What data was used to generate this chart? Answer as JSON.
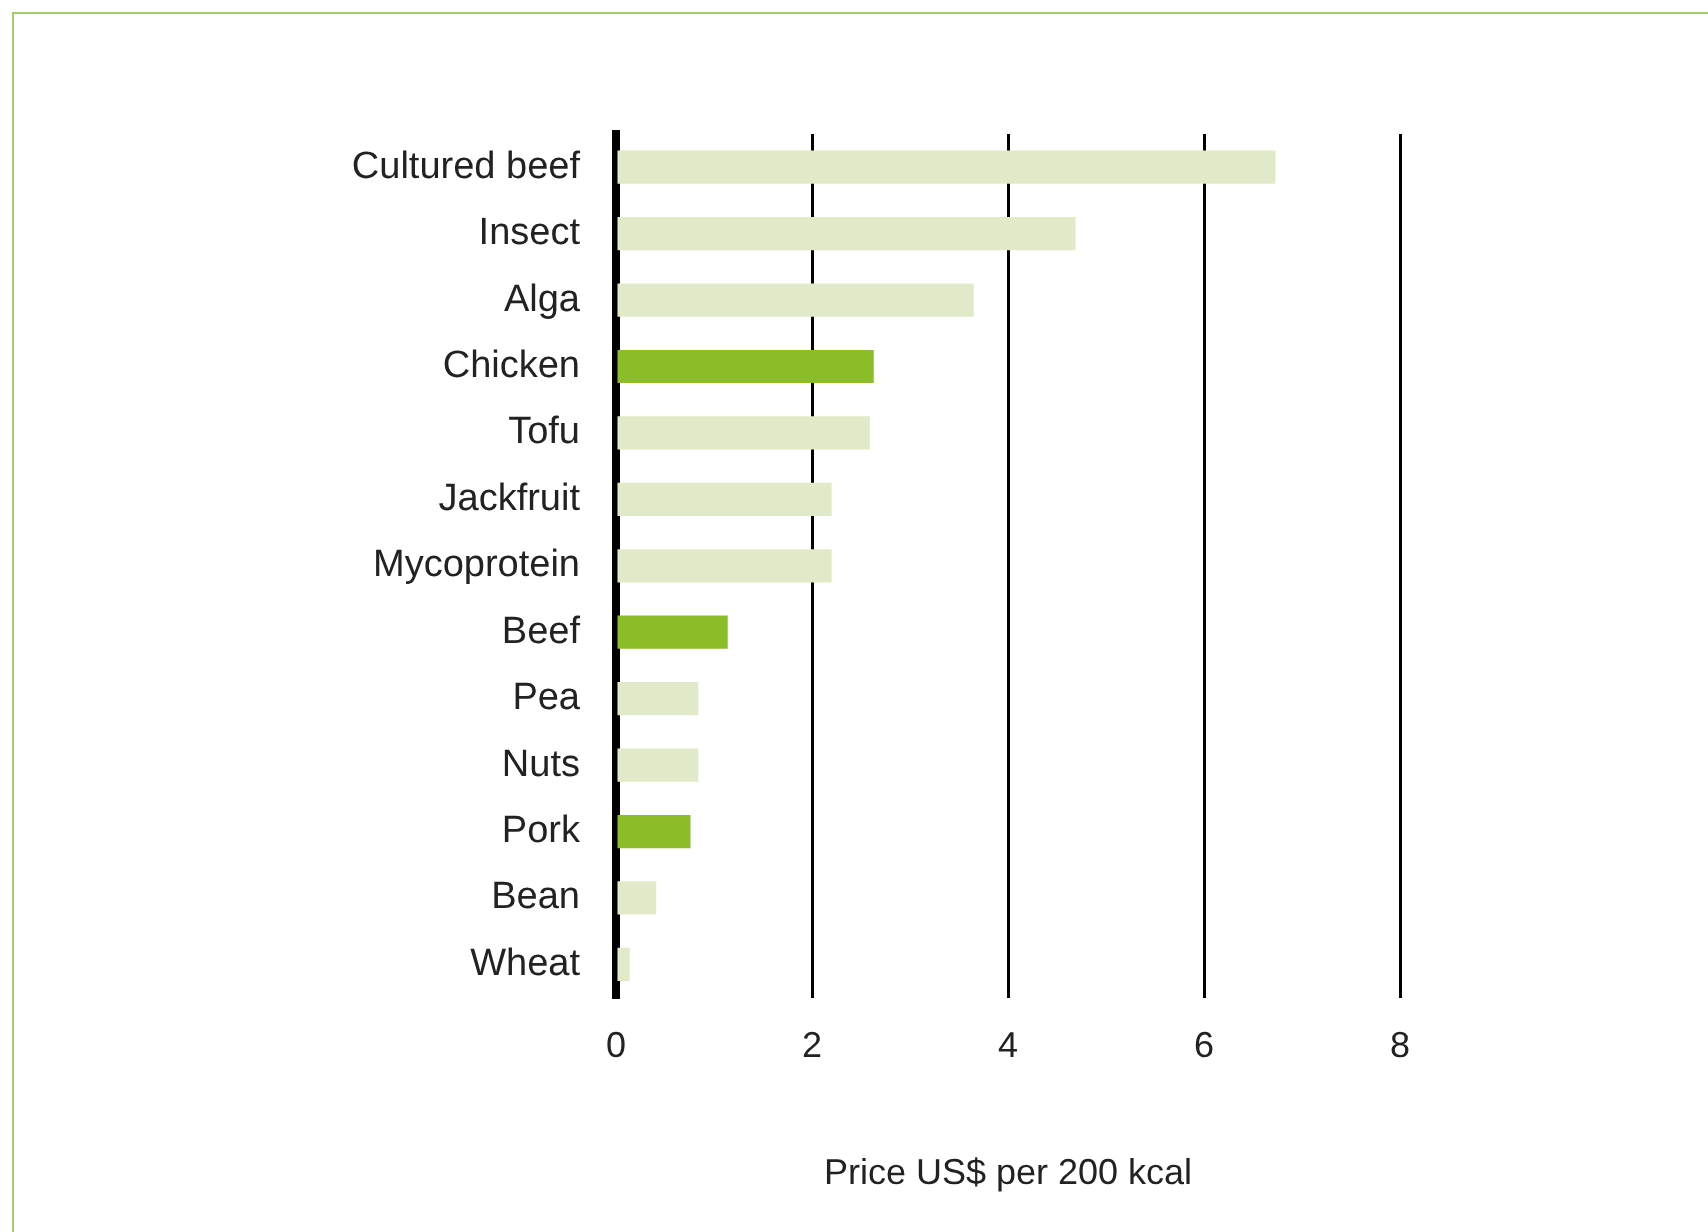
{
  "chart_data": {
    "type": "bar",
    "orientation": "horizontal",
    "categories": [
      "Cultured beef",
      "Insect",
      "Alga",
      "Chicken",
      "Tofu",
      "Jackfruit",
      "Mycoprotein",
      "Beef",
      "Pea",
      "Nuts",
      "Pork",
      "Bean",
      "Wheat"
    ],
    "values": [
      6.73,
      4.69,
      3.65,
      2.63,
      2.59,
      2.2,
      2.2,
      1.14,
      0.84,
      0.84,
      0.76,
      0.41,
      0.14
    ],
    "colors": [
      "#e0eac8",
      "#e0eac8",
      "#e0eac8",
      "#8abd28",
      "#e0eac8",
      "#e0eac8",
      "#e0eac8",
      "#8abd28",
      "#e0eac8",
      "#e0eac8",
      "#8abd28",
      "#e0eac8",
      "#e0eac8"
    ],
    "xlim": [
      0,
      8
    ],
    "xticks": [
      0,
      2,
      4,
      6,
      8
    ],
    "xlabel": "Price US$ per 200 kcal",
    "grid": "x"
  }
}
